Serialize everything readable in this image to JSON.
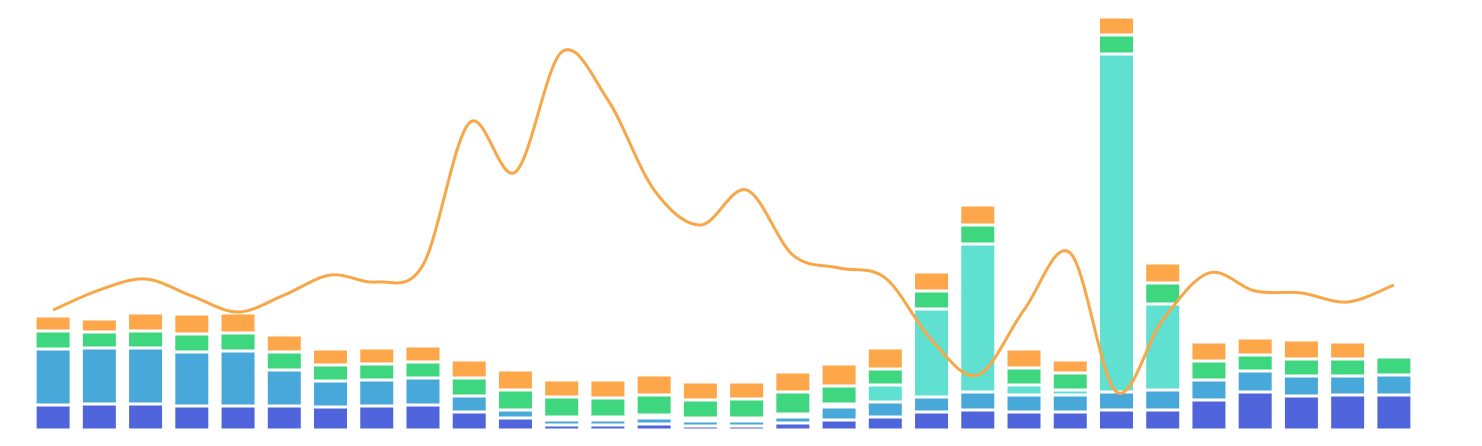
{
  "chart_data": {
    "type": "bar",
    "categories": [
      null,
      null,
      null,
      null,
      null,
      null,
      null,
      null,
      null,
      null,
      null,
      null,
      null,
      null,
      null,
      null,
      null,
      null,
      null,
      null,
      null,
      null,
      null,
      null,
      null,
      null,
      null,
      null,
      null,
      null
    ],
    "stacked": true,
    "ylim": [
      0,
      420
    ],
    "series": [
      {
        "color": "#5064dc",
        "values": [
          25,
          26,
          26,
          24,
          24,
          24,
          23,
          24,
          25,
          18,
          12,
          5,
          5,
          6,
          4,
          4,
          7,
          10,
          13,
          18,
          20,
          18,
          18,
          20,
          20,
          30,
          38,
          34,
          35,
          35
        ]
      },
      {
        "color": "#48a8da",
        "values": [
          56,
          56,
          56,
          54,
          55,
          36,
          26,
          26,
          27,
          16,
          8,
          5,
          5,
          6,
          5,
          5,
          6,
          13,
          15,
          15,
          18,
          17,
          17,
          18,
          20,
          20,
          21,
          20,
          19,
          20
        ]
      },
      {
        "color": "#5fe0d0",
        "values": [
          0,
          0,
          0,
          0,
          0,
          0,
          0,
          0,
          0,
          0,
          0,
          3,
          3,
          3,
          3,
          3,
          3,
          3,
          17,
          88,
          148,
          10,
          5,
          338,
          86,
          0,
          0,
          0,
          0,
          0
        ]
      },
      {
        "color": "#3ed67e",
        "values": [
          18,
          16,
          17,
          18,
          18,
          18,
          16,
          16,
          16,
          18,
          20,
          20,
          19,
          20,
          18,
          19,
          22,
          18,
          16,
          18,
          19,
          17,
          17,
          19,
          21,
          19,
          16,
          17,
          17,
          18
        ]
      },
      {
        "color": "#fda64a",
        "values": [
          15,
          13,
          18,
          20,
          20,
          17,
          16,
          16,
          16,
          18,
          20,
          17,
          18,
          20,
          18,
          17,
          20,
          22,
          21,
          19,
          20,
          19,
          13,
          18,
          20,
          19,
          17,
          19,
          17,
          0
        ]
      },
      {
        "type": "line",
        "color": "#f7a748",
        "values": [
          120,
          140,
          151,
          134,
          118,
          135,
          155,
          148,
          165,
          307,
          258,
          378,
          330,
          240,
          205,
          240,
          175,
          162,
          152,
          90,
          55,
          120,
          177,
          38,
          110,
          157,
          139,
          137,
          128,
          145
        ]
      }
    ]
  }
}
